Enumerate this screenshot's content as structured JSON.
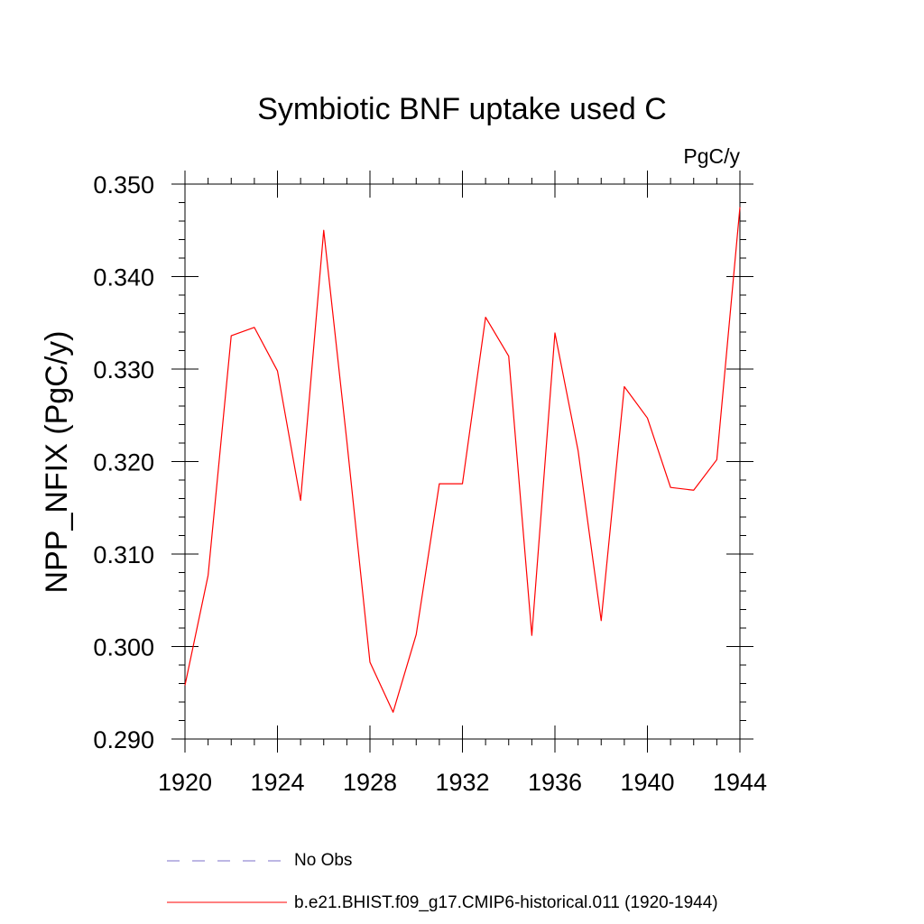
{
  "chart_data": {
    "type": "line",
    "title": "Symbiotic BNF uptake used C",
    "units_label": "PgC/y",
    "ylabel": "NPP_NFIX  (PgC/y)",
    "xlabel": "",
    "xlim": [
      1920,
      1944
    ],
    "ylim": [
      0.29,
      0.35
    ],
    "x_ticks": [
      "1920",
      "1924",
      "1928",
      "1932",
      "1936",
      "1940",
      "1944"
    ],
    "y_ticks": [
      "0.290",
      "0.300",
      "0.310",
      "0.320",
      "0.330",
      "0.340",
      "0.350"
    ],
    "grid": false,
    "legend_position": "bottom",
    "x": [
      1920,
      1921,
      1922,
      1923,
      1924,
      1925,
      1926,
      1927,
      1928,
      1929,
      1930,
      1931,
      1932,
      1933,
      1934,
      1935,
      1936,
      1937,
      1938,
      1939,
      1940,
      1941,
      1942,
      1943,
      1944
    ],
    "series": [
      {
        "name": "b.e21.BHIST.f09_g17.CMIP6-historical.011 (1920-1944)",
        "color": "#ff0000",
        "style": "solid",
        "values": [
          0.2958,
          0.3077,
          0.3336,
          0.3345,
          0.3298,
          0.3158,
          0.345,
          0.3222,
          0.2983,
          0.2929,
          0.3013,
          0.3176,
          0.3176,
          0.3356,
          0.3314,
          0.3012,
          0.3339,
          0.3212,
          0.3028,
          0.3281,
          0.3247,
          0.3172,
          0.3169,
          0.3202,
          0.3475
        ]
      }
    ],
    "legend": [
      {
        "label": "No Obs",
        "color": "#7b6fc9",
        "style": "dashed"
      },
      {
        "label": "b.e21.BHIST.f09_g17.CMIP6-historical.011 (1920-1944)",
        "color": "#ff0000",
        "style": "solid"
      }
    ]
  }
}
